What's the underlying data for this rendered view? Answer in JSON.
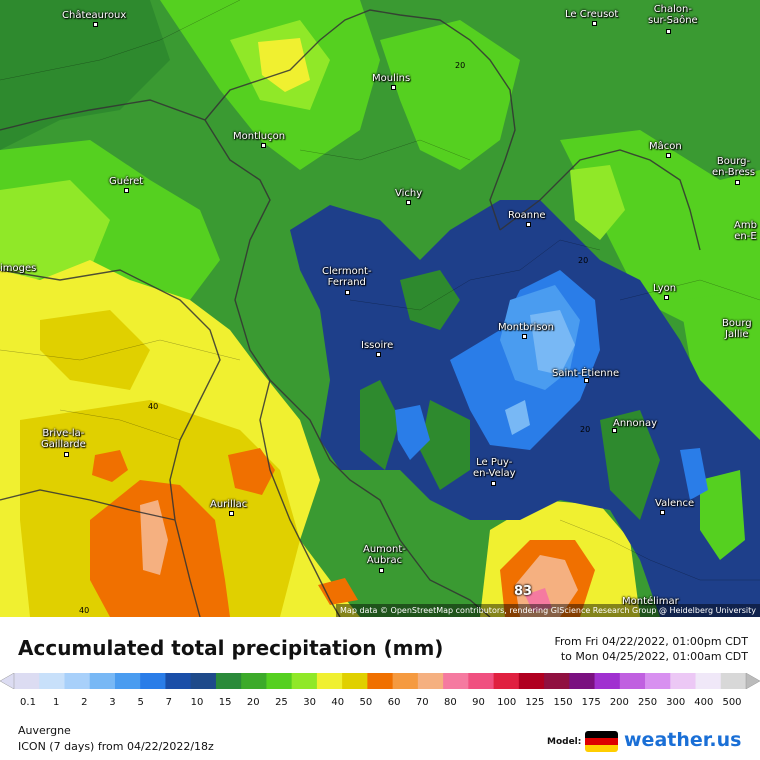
{
  "map": {
    "attribution": "Map data © OpenStreetMap contributors, rendering GIScience Research Group @ Heidelberg University",
    "max_value": "83",
    "contour_labels": [
      "20",
      "20",
      "20",
      "40",
      "40"
    ],
    "cities": [
      {
        "name": "Châteauroux"
      },
      {
        "name": "Le Creusot"
      },
      {
        "name": "Chalon-\nsur-Saône"
      },
      {
        "name": "Moulins"
      },
      {
        "name": "Montluçon"
      },
      {
        "name": "Mâcon"
      },
      {
        "name": "Bourg-\nen-Bress"
      },
      {
        "name": "Guéret"
      },
      {
        "name": "Vichy"
      },
      {
        "name": "Roanne"
      },
      {
        "name": "Amb\nen-E"
      },
      {
        "name": "imoges"
      },
      {
        "name": "Clermont-\nFerrand"
      },
      {
        "name": "Lyon"
      },
      {
        "name": "Bourg\nJallie"
      },
      {
        "name": "Montbrison"
      },
      {
        "name": "Issoire"
      },
      {
        "name": "Saint-Étienne"
      },
      {
        "name": "Annonay"
      },
      {
        "name": "Brive-la-\nGaillarde"
      },
      {
        "name": "Le Puy-\nen-Velay"
      },
      {
        "name": "Valence"
      },
      {
        "name": "Aurillac"
      },
      {
        "name": "Aumont-\nAubrac"
      },
      {
        "name": "Montélimar"
      }
    ]
  },
  "legend": {
    "title": "Accumulated total precipitation (mm)",
    "period_from": "From Fri 04/22/2022, 01:00pm CDT",
    "period_to": "to Mon 04/25/2022, 01:00am CDT",
    "ticks": [
      "0.1",
      "1",
      "2",
      "3",
      "5",
      "7",
      "10",
      "15",
      "20",
      "25",
      "30",
      "40",
      "50",
      "60",
      "70",
      "80",
      "90",
      "100",
      "125",
      "150",
      "175",
      "200",
      "250",
      "300",
      "400",
      "500"
    ],
    "colors": [
      "#dcdcf2",
      "#c8e0fa",
      "#a8d0fa",
      "#78b8f5",
      "#4a9cf0",
      "#2a7de8",
      "#1a4ea8",
      "#1e4a8a",
      "#2a8a3a",
      "#3caa2a",
      "#55d020",
      "#90e828",
      "#f0f030",
      "#e0d000",
      "#f07000",
      "#f59a40",
      "#f5b080",
      "#f57aa0",
      "#f05080",
      "#e02040",
      "#b00020",
      "#901040",
      "#7a1080",
      "#a030d0",
      "#c060e0",
      "#d890f0",
      "#ecc8f5",
      "#f0e8f8",
      "#d8d8d8"
    ],
    "region": "Auvergne",
    "model_run": "ICON (7 days)  from  04/22/2022/18z",
    "model_label": "Model:",
    "brand": "weather.us",
    "flag_colors": [
      "#000000",
      "#dd0000",
      "#ffce00"
    ]
  }
}
